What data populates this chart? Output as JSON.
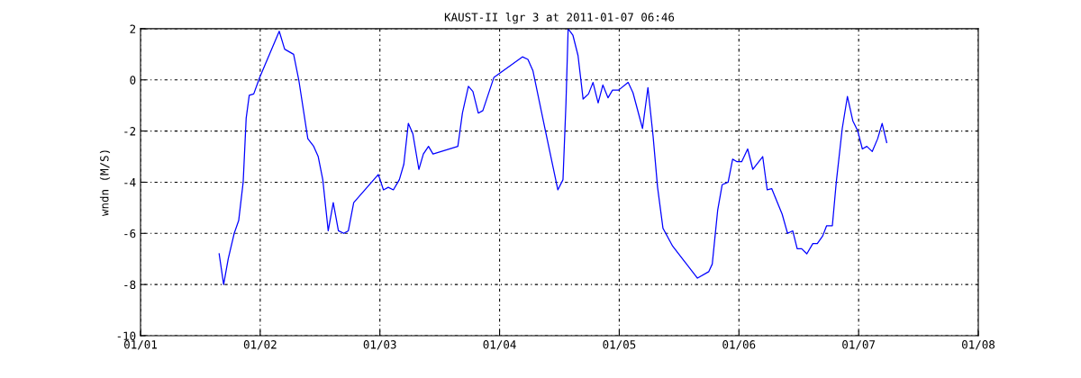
{
  "chart_data": {
    "type": "line",
    "title": "KAUST-II lgr 3 at 2011-01-07 06:46",
    "ylabel": "wndn (M/S)",
    "x": [
      "2011-01-01T15:46",
      "2011-01-01T16:40",
      "2011-01-01T17:35",
      "2011-01-01T18:47",
      "2011-01-01T19:41",
      "2011-01-01T20:35",
      "2011-01-01T21:11",
      "2011-01-01T21:48",
      "2011-01-01T22:42",
      "2011-01-01T23:54",
      "2011-01-02T03:49",
      "2011-01-02T04:54",
      "2011-01-02T06:42",
      "2011-01-02T07:44",
      "2011-01-02T09:33",
      "2011-01-02T10:44",
      "2011-01-02T11:38",
      "2011-01-02T12:33",
      "2011-01-02T13:38",
      "2011-01-02T14:39",
      "2011-01-02T15:41",
      "2011-01-02T16:46",
      "2011-01-02T17:40",
      "2011-01-02T18:45",
      "2011-01-02T23:41",
      "2011-01-03T00:43",
      "2011-01-03T01:41",
      "2011-01-03T02:42",
      "2011-01-03T03:54",
      "2011-01-03T04:48",
      "2011-01-03T05:42",
      "2011-01-03T06:36",
      "2011-01-03T07:49",
      "2011-01-03T08:43",
      "2011-01-03T09:45",
      "2011-01-03T10:39",
      "2011-01-03T15:38",
      "2011-01-03T16:33",
      "2011-01-03T17:45",
      "2011-01-03T18:39",
      "2011-01-03T19:44",
      "2011-01-03T20:39",
      "2011-01-03T22:52",
      "2011-01-04T04:35",
      "2011-01-04T05:41",
      "2011-01-04T06:42",
      "2011-01-04T09:06",
      "2011-01-04T11:41",
      "2011-01-04T12:43",
      "2011-01-04T13:19",
      "2011-01-04T13:45",
      "2011-01-04T14:42",
      "2011-01-04T15:44",
      "2011-01-04T16:45",
      "2011-01-04T17:50",
      "2011-01-04T18:44",
      "2011-01-04T19:46",
      "2011-01-04T20:43",
      "2011-01-04T21:45",
      "2011-01-04T22:39",
      "2011-01-04T23:52",
      "2011-01-05T01:47",
      "2011-01-05T02:45",
      "2011-01-05T04:40",
      "2011-01-05T05:45",
      "2011-01-05T06:47",
      "2011-01-05T07:41",
      "2011-01-05T08:46",
      "2011-01-05T10:42",
      "2011-01-05T13:06",
      "2011-01-05T15:41",
      "2011-01-05T17:56",
      "2011-01-05T18:39",
      "2011-01-05T19:44",
      "2011-01-05T20:38",
      "2011-01-05T21:50",
      "2011-01-05T22:44",
      "2011-01-05T23:38",
      "2011-01-06T00:33",
      "2011-01-06T01:45",
      "2011-01-06T02:47",
      "2011-01-06T04:46",
      "2011-01-06T05:40",
      "2011-01-06T06:34",
      "2011-01-06T08:40",
      "2011-01-06T09:45",
      "2011-01-06T10:47",
      "2011-01-06T11:41",
      "2011-01-06T12:35",
      "2011-01-06T13:37",
      "2011-01-06T14:49",
      "2011-01-06T15:43",
      "2011-01-06T16:48",
      "2011-01-06T17:35",
      "2011-01-06T18:44",
      "2011-01-06T19:31",
      "2011-01-06T20:43",
      "2011-01-06T21:45",
      "2011-01-06T22:50",
      "2011-01-06T23:50",
      "2011-01-07T00:45",
      "2011-01-07T01:39",
      "2011-01-07T02:44",
      "2011-01-07T03:49",
      "2011-01-07T04:43",
      "2011-01-07T05:38"
    ],
    "series": [
      {
        "color": "#0000ff",
        "values": [
          -6.8,
          -8.0,
          -7.0,
          -6.0,
          -5.5,
          -4.0,
          -1.5,
          -0.6,
          -0.55,
          0.1,
          1.9,
          1.2,
          1.0,
          0.0,
          -2.3,
          -2.6,
          -3.0,
          -3.9,
          -5.9,
          -4.8,
          -5.9,
          -6.0,
          -5.9,
          -4.8,
          -3.7,
          -4.3,
          -4.2,
          -4.3,
          -3.9,
          -3.3,
          -1.7,
          -2.1,
          -3.5,
          -2.9,
          -2.6,
          -2.9,
          -2.6,
          -1.3,
          -0.25,
          -0.45,
          -1.3,
          -1.2,
          0.1,
          0.9,
          0.8,
          0.35,
          -1.9,
          -4.3,
          -3.9,
          -0.9,
          2.0,
          1.75,
          0.95,
          -0.75,
          -0.55,
          -0.1,
          -0.9,
          -0.2,
          -0.7,
          -0.4,
          -0.4,
          -0.1,
          -0.5,
          -1.9,
          -0.3,
          -2.2,
          -4.2,
          -5.8,
          -6.5,
          -7.1,
          -7.75,
          -7.5,
          -7.2,
          -5.1,
          -4.1,
          -4.0,
          -3.1,
          -3.2,
          -3.2,
          -2.7,
          -3.5,
          -3.0,
          -4.3,
          -4.25,
          -5.25,
          -6.0,
          -5.9,
          -6.6,
          -6.6,
          -6.8,
          -6.4,
          -6.4,
          -6.1,
          -5.7,
          -5.7,
          -4.0,
          -1.9,
          -0.65,
          -1.6,
          -2.0,
          -2.7,
          -2.6,
          -2.8,
          -2.3,
          -1.7,
          -2.45
        ]
      }
    ],
    "xlim": [
      "2011-01-01",
      "2011-01-08"
    ],
    "xticks": [
      {
        "value": "2011-01-01",
        "label": "01/01"
      },
      {
        "value": "2011-01-02",
        "label": "01/02"
      },
      {
        "value": "2011-01-03",
        "label": "01/03"
      },
      {
        "value": "2011-01-04",
        "label": "01/04"
      },
      {
        "value": "2011-01-05",
        "label": "01/05"
      },
      {
        "value": "2011-01-06",
        "label": "01/06"
      },
      {
        "value": "2011-01-07",
        "label": "01/07"
      },
      {
        "value": "2011-01-08",
        "label": "01/08"
      }
    ],
    "ylim": [
      -10,
      2
    ],
    "yticks": [
      -10,
      -8,
      -6,
      -4,
      -2,
      0,
      2
    ],
    "grid": true,
    "line_style": "solid",
    "marker": "none",
    "legend": false
  }
}
